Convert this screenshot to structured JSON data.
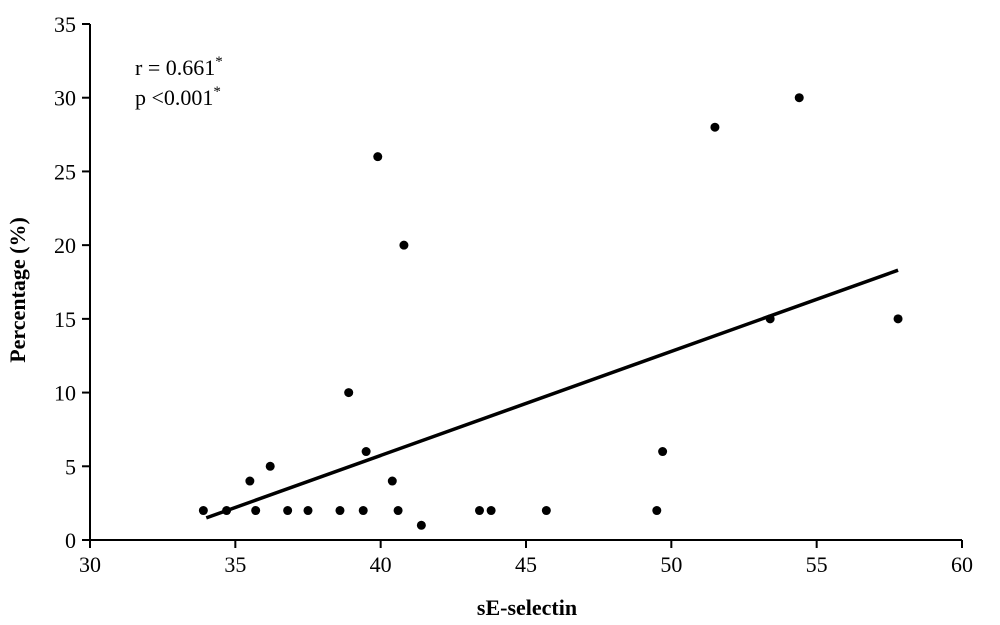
{
  "chart_data": {
    "type": "scatter",
    "xlabel": "sE-selectin",
    "ylabel": "Percentage (%)",
    "xlim": [
      30,
      60
    ],
    "ylim": [
      0,
      35
    ],
    "xticks": [
      "30",
      "35",
      "40",
      "45",
      "50",
      "55",
      "60"
    ],
    "yticks": [
      "0",
      "5",
      "10",
      "15",
      "20",
      "25",
      "30",
      "35"
    ],
    "grid": false,
    "points": [
      {
        "x": 33.9,
        "y": 2
      },
      {
        "x": 34.7,
        "y": 2
      },
      {
        "x": 35.5,
        "y": 4
      },
      {
        "x": 35.7,
        "y": 2
      },
      {
        "x": 36.2,
        "y": 5
      },
      {
        "x": 36.8,
        "y": 2
      },
      {
        "x": 37.5,
        "y": 2
      },
      {
        "x": 38.6,
        "y": 2
      },
      {
        "x": 38.9,
        "y": 10
      },
      {
        "x": 39.4,
        "y": 2
      },
      {
        "x": 39.5,
        "y": 6
      },
      {
        "x": 39.9,
        "y": 26
      },
      {
        "x": 40.4,
        "y": 4
      },
      {
        "x": 40.6,
        "y": 2
      },
      {
        "x": 40.8,
        "y": 20
      },
      {
        "x": 41.4,
        "y": 1
      },
      {
        "x": 43.4,
        "y": 2
      },
      {
        "x": 43.8,
        "y": 2
      },
      {
        "x": 45.7,
        "y": 2
      },
      {
        "x": 49.5,
        "y": 2
      },
      {
        "x": 49.7,
        "y": 6
      },
      {
        "x": 51.5,
        "y": 28
      },
      {
        "x": 53.4,
        "y": 15
      },
      {
        "x": 54.4,
        "y": 30
      },
      {
        "x": 57.8,
        "y": 15
      }
    ],
    "trendline": {
      "x": [
        34.0,
        57.8
      ],
      "y": [
        1.5,
        18.3
      ]
    },
    "annotations": {
      "r_line": "r = 0.661",
      "r_mark": "*",
      "p_line": "p <0.001",
      "p_mark": "*"
    }
  }
}
